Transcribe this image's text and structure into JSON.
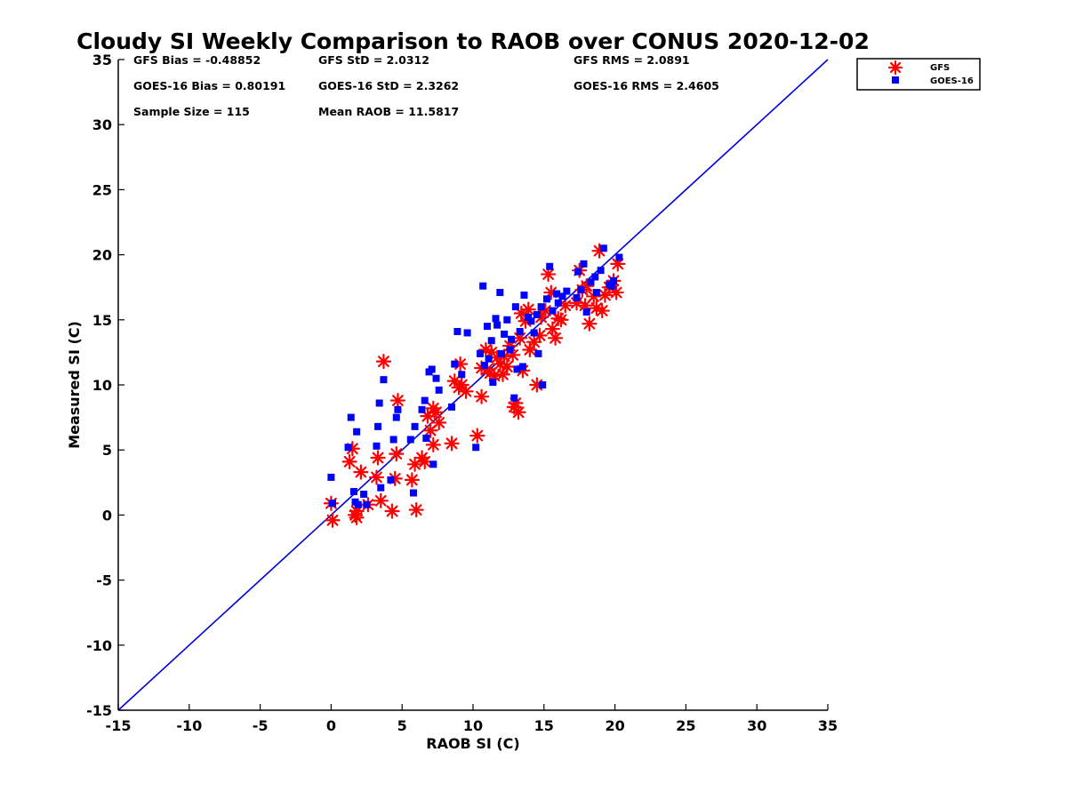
{
  "chart_data": {
    "type": "scatter",
    "title": "Cloudy SI Weekly Comparison to RAOB over CONUS 2020-12-02",
    "xlabel": "RAOB SI (C)",
    "ylabel": "Measured SI (C)",
    "xlim": [
      -15,
      35
    ],
    "ylim": [
      -15,
      35
    ],
    "xticks": [
      "-15",
      "-10",
      "-5",
      "0",
      "5",
      "10",
      "15",
      "20",
      "25",
      "30",
      "35"
    ],
    "yticks": [
      "-15",
      "-10",
      "-5",
      "0",
      "5",
      "10",
      "15",
      "20",
      "25",
      "30",
      "35"
    ],
    "grid": false,
    "legend_position": "top-right, outside plot",
    "reference_line": {
      "label": "",
      "from": [
        -15,
        -15
      ],
      "to": [
        35,
        35
      ],
      "color": "#0000dd"
    },
    "stats": [
      {
        "text": "GFS Bias = -0.48852"
      },
      {
        "text": "GFS StD = 2.0312"
      },
      {
        "text": "GFS RMS = 2.0891"
      },
      {
        "text": "GOES-16 Bias = 0.80191"
      },
      {
        "text": "GOES-16 StD = 2.3262"
      },
      {
        "text": "GOES-16 RMS = 2.4605"
      },
      {
        "text": "Sample Size = 115"
      },
      {
        "text": "Mean RAOB = 11.5817"
      }
    ],
    "series": [
      {
        "name": "GFS",
        "marker": "asterisk",
        "color": "#ff0000",
        "x": [
          0.0,
          0.1,
          1.3,
          1.5,
          1.7,
          1.8,
          1.8,
          2.1,
          2.6,
          3.2,
          3.3,
          3.5,
          3.7,
          4.3,
          4.5,
          4.6,
          4.7,
          5.7,
          5.9,
          6.0,
          6.4,
          6.6,
          6.8,
          7.0,
          7.2,
          7.2,
          7.4,
          7.6,
          8.5,
          8.7,
          9.0,
          9.1,
          9.2,
          9.5,
          10.3,
          10.6,
          10.6,
          10.9,
          11.0,
          11.2,
          11.3,
          11.5,
          11.7,
          11.9,
          12.1,
          12.2,
          12.4,
          12.6,
          12.8,
          12.9,
          13.0,
          13.2,
          13.3,
          13.4,
          13.5,
          13.7,
          13.9,
          14.0,
          14.3,
          14.5,
          14.7,
          14.8,
          15.1,
          15.3,
          15.5,
          15.6,
          15.8,
          16.0,
          16.2,
          16.5,
          17.3,
          17.5,
          17.7,
          17.9,
          18.0,
          18.2,
          18.5,
          18.7,
          18.9,
          19.1,
          19.3,
          19.6,
          19.9,
          20.1,
          20.2
        ],
        "y": [
          0.9,
          -0.4,
          4.1,
          5.1,
          0.0,
          -0.2,
          0.3,
          3.3,
          0.8,
          2.9,
          4.4,
          1.1,
          11.8,
          0.3,
          2.8,
          4.7,
          8.8,
          2.7,
          3.9,
          0.4,
          4.4,
          4.1,
          7.6,
          6.5,
          8.2,
          5.4,
          7.9,
          7.1,
          5.5,
          10.3,
          9.8,
          11.6,
          10.0,
          9.5,
          6.1,
          9.1,
          11.3,
          12.7,
          11.2,
          10.9,
          12.5,
          10.7,
          12.1,
          11.6,
          10.8,
          12.2,
          11.4,
          13.0,
          12.3,
          8.3,
          8.6,
          7.9,
          13.6,
          15.5,
          11.1,
          14.9,
          15.8,
          12.7,
          13.3,
          10.0,
          13.8,
          15.2,
          15.7,
          18.5,
          17.1,
          14.3,
          13.6,
          15.1,
          15.0,
          16.1,
          16.3,
          18.8,
          17.3,
          16.1,
          17.6,
          14.7,
          16.8,
          15.9,
          20.3,
          15.7,
          16.9,
          17.5,
          18.0,
          17.1,
          19.3
        ]
      },
      {
        "name": "GOES-16",
        "marker": "square",
        "color": "#0000ff",
        "x": [
          0.0,
          0.1,
          1.2,
          1.4,
          1.6,
          1.7,
          1.8,
          1.9,
          2.3,
          2.5,
          3.2,
          3.3,
          3.4,
          3.5,
          3.7,
          4.2,
          4.4,
          4.6,
          4.7,
          5.6,
          5.8,
          5.9,
          6.4,
          6.6,
          6.7,
          6.9,
          7.1,
          7.2,
          7.4,
          7.6,
          8.5,
          8.7,
          8.9,
          9.2,
          9.6,
          10.2,
          10.5,
          10.7,
          10.8,
          11.0,
          11.1,
          11.3,
          11.4,
          11.6,
          11.7,
          11.9,
          12.0,
          12.2,
          12.4,
          12.6,
          12.7,
          12.9,
          13.0,
          13.1,
          13.3,
          13.5,
          13.6,
          13.9,
          14.1,
          14.3,
          14.5,
          14.6,
          14.8,
          14.9,
          15.2,
          15.4,
          15.6,
          15.9,
          16.0,
          16.3,
          16.6,
          17.3,
          17.4,
          17.6,
          17.8,
          18.0,
          18.3,
          18.6,
          18.7,
          19.0,
          19.2,
          19.6,
          19.8,
          19.9,
          20.3
        ],
        "y": [
          2.9,
          0.9,
          5.2,
          7.5,
          1.8,
          1.0,
          6.4,
          0.8,
          1.6,
          0.8,
          5.3,
          6.8,
          8.6,
          2.1,
          10.4,
          2.7,
          5.8,
          7.5,
          8.1,
          5.8,
          1.7,
          6.8,
          8.1,
          8.8,
          5.9,
          11.0,
          11.2,
          3.9,
          10.5,
          9.6,
          8.3,
          11.6,
          14.1,
          10.8,
          14.0,
          5.2,
          12.4,
          17.6,
          11.5,
          14.5,
          12.0,
          13.4,
          10.2,
          15.1,
          14.6,
          17.1,
          12.4,
          13.9,
          15.0,
          12.7,
          13.5,
          9.0,
          16.0,
          11.2,
          14.1,
          11.4,
          16.9,
          15.2,
          14.9,
          14.0,
          15.4,
          12.4,
          16.0,
          10.0,
          16.6,
          19.1,
          15.7,
          17.0,
          16.3,
          16.8,
          17.2,
          16.7,
          18.7,
          17.3,
          19.3,
          15.6,
          17.9,
          18.3,
          17.1,
          18.8,
          20.5,
          17.7,
          17.6,
          18.0,
          19.8
        ]
      }
    ]
  }
}
